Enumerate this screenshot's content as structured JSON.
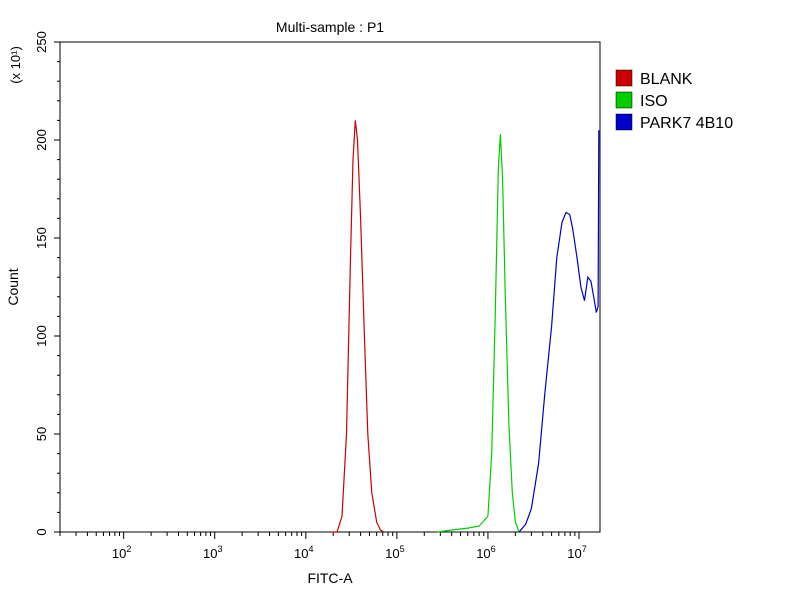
{
  "chart_data": {
    "type": "line",
    "title": "Multi-sample : P1",
    "xlabel": "FITC-A",
    "ylabel": "Count",
    "y_multiplier": "(x 10¹)",
    "x_scale": "log",
    "xlim": [
      20,
      17000000
    ],
    "ylim": [
      0,
      250
    ],
    "y_ticks": [
      0,
      50,
      100,
      150,
      200,
      250
    ],
    "x_ticks": [
      {
        "value": 100,
        "base": "10",
        "exp": "2"
      },
      {
        "value": 1000,
        "base": "10",
        "exp": "3"
      },
      {
        "value": 10000,
        "base": "10",
        "exp": "4"
      },
      {
        "value": 100000,
        "base": "10",
        "exp": "5"
      },
      {
        "value": 1000000,
        "base": "10",
        "exp": "6"
      },
      {
        "value": 10000000,
        "base": "10",
        "exp": "7"
      }
    ],
    "legend_position": "right",
    "series": [
      {
        "name": "BLANK",
        "color": "#cc0000",
        "points": [
          [
            19000,
            0
          ],
          [
            22000,
            0
          ],
          [
            25000,
            8
          ],
          [
            28000,
            50
          ],
          [
            31000,
            140
          ],
          [
            33000,
            190
          ],
          [
            35000,
            210
          ],
          [
            37000,
            200
          ],
          [
            40000,
            160
          ],
          [
            44000,
            100
          ],
          [
            48000,
            50
          ],
          [
            53000,
            20
          ],
          [
            60000,
            5
          ],
          [
            66000,
            1
          ],
          [
            72000,
            0
          ]
        ]
      },
      {
        "name": "ISO",
        "color": "#00cc00",
        "points": [
          [
            280000,
            0
          ],
          [
            400000,
            1
          ],
          [
            600000,
            2
          ],
          [
            800000,
            3
          ],
          [
            1000000,
            8
          ],
          [
            1100000,
            40
          ],
          [
            1200000,
            110
          ],
          [
            1300000,
            185
          ],
          [
            1370000,
            203
          ],
          [
            1450000,
            180
          ],
          [
            1550000,
            120
          ],
          [
            1700000,
            55
          ],
          [
            1850000,
            20
          ],
          [
            2000000,
            5
          ],
          [
            2200000,
            0
          ]
        ]
      },
      {
        "name": "PARK7 4B10",
        "color": "#0000cc",
        "points": [
          [
            2200000,
            0
          ],
          [
            2600000,
            4
          ],
          [
            3000000,
            12
          ],
          [
            3600000,
            35
          ],
          [
            4200000,
            70
          ],
          [
            5000000,
            105
          ],
          [
            5700000,
            140
          ],
          [
            6500000,
            158
          ],
          [
            7200000,
            163
          ],
          [
            7900000,
            162
          ],
          [
            8500000,
            155
          ],
          [
            9500000,
            140
          ],
          [
            10500000,
            125
          ],
          [
            11500000,
            118
          ],
          [
            12500000,
            130
          ],
          [
            13500000,
            128
          ],
          [
            14500000,
            120
          ],
          [
            15500000,
            112
          ],
          [
            16200000,
            115
          ],
          [
            16500000,
            205
          ]
        ]
      }
    ]
  }
}
